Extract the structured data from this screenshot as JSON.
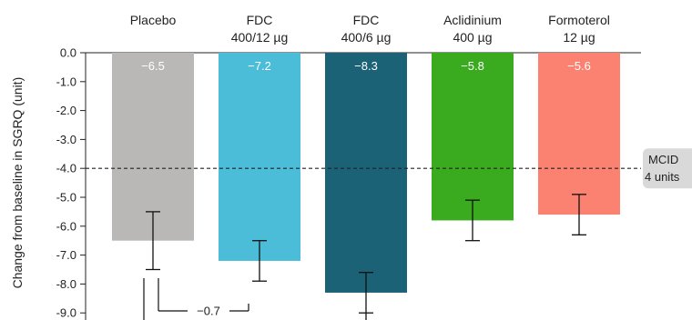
{
  "chart_data": {
    "type": "bar",
    "ylabel": "Change from baseline in SGRQ (unit)",
    "ylim": [
      -9.0,
      0.0
    ],
    "yticks": [
      "0.0",
      "-1.0",
      "-2.0",
      "-3.0",
      "-4.0",
      "-5.0",
      "-6.0",
      "-7.0",
      "-8.0",
      "-9.0"
    ],
    "categories": [
      {
        "line1": "Placebo",
        "line2": ""
      },
      {
        "line1": "FDC",
        "line2": "400/12 µg"
      },
      {
        "line1": "FDC",
        "line2": "400/6 µg"
      },
      {
        "line1": "Aclidinium",
        "line2": "400 µg"
      },
      {
        "line1": "Formoterol",
        "line2": "12 µg"
      }
    ],
    "values": [
      -6.5,
      -7.2,
      -8.3,
      -5.8,
      -5.6
    ],
    "value_labels": [
      "−6.5",
      "−7.2",
      "−8.3",
      "−5.8",
      "−5.6"
    ],
    "error_bars": [
      {
        "low": -7.5,
        "high": -5.5
      },
      {
        "low": -7.9,
        "high": -6.5
      },
      {
        "low": -9.0,
        "high": -7.6
      },
      {
        "low": -6.5,
        "high": -5.1
      },
      {
        "low": -6.3,
        "high": -4.9
      }
    ],
    "colors": [
      "#b9b8b6",
      "#4bbdd9",
      "#1b6276",
      "#3aaa1f",
      "#fb8270"
    ],
    "reference_line": {
      "value": -4.0,
      "label_line1": "MCID",
      "label_line2": "4 units",
      "style": "dashed"
    },
    "comparison": {
      "label": "−0.7",
      "from": 0,
      "to": 1
    }
  }
}
